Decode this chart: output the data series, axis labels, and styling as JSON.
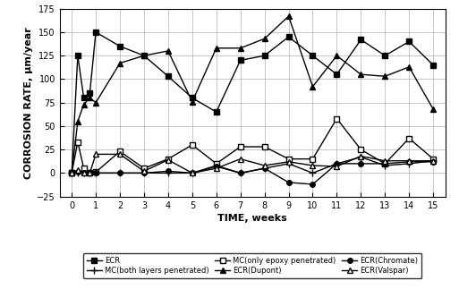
{
  "title": "",
  "xlabel": "TIME, weeks",
  "ylabel": "CORROSION RATE, µm/year",
  "xlim": [
    -0.5,
    15.5
  ],
  "ylim": [
    -25,
    175
  ],
  "yticks": [
    -25,
    0,
    25,
    50,
    75,
    100,
    125,
    150,
    175
  ],
  "xticks": [
    0,
    1,
    2,
    3,
    4,
    5,
    6,
    7,
    8,
    9,
    10,
    11,
    12,
    13,
    14,
    15
  ],
  "series": [
    {
      "label": "ECR",
      "marker": "s",
      "marker_filled": true,
      "linewidth": 1.0,
      "markersize": 4,
      "x": [
        0,
        0.25,
        0.5,
        0.75,
        1,
        2,
        3,
        4,
        5,
        6,
        7,
        8,
        9,
        10,
        11,
        12,
        13,
        14,
        15
      ],
      "y": [
        0,
        125,
        80,
        85,
        150,
        135,
        125,
        103,
        80,
        65,
        120,
        125,
        145,
        125,
        105,
        142,
        125,
        140,
        115
      ]
    },
    {
      "label": "MC(both layers penetrated)",
      "marker": "+",
      "marker_filled": true,
      "linewidth": 1.0,
      "markersize": 6,
      "x": [
        0,
        0.25,
        0.5,
        0.75,
        1,
        2,
        3,
        4,
        5,
        6,
        7,
        8,
        9,
        10,
        11,
        12,
        13,
        14,
        15
      ],
      "y": [
        0,
        0,
        0,
        0,
        0,
        0,
        0,
        0,
        0,
        8,
        0,
        5,
        10,
        0,
        10,
        17,
        8,
        10,
        13
      ]
    },
    {
      "label": "MC(only epoxy penetrated)",
      "marker": "s",
      "marker_filled": false,
      "linewidth": 1.0,
      "markersize": 4,
      "x": [
        0,
        0.25,
        0.5,
        0.75,
        1,
        2,
        3,
        4,
        5,
        6,
        7,
        8,
        9,
        10,
        11,
        12,
        13,
        14,
        15
      ],
      "y": [
        0,
        33,
        5,
        0,
        1,
        23,
        5,
        15,
        30,
        10,
        28,
        28,
        15,
        15,
        58,
        25,
        10,
        37,
        15
      ]
    },
    {
      "label": "ECR(Dupont)",
      "marker": "^",
      "marker_filled": true,
      "linewidth": 1.0,
      "markersize": 5,
      "x": [
        0,
        0.25,
        0.5,
        0.75,
        1,
        2,
        3,
        4,
        5,
        6,
        7,
        8,
        9,
        10,
        11,
        12,
        13,
        14,
        15
      ],
      "y": [
        0,
        55,
        73,
        80,
        75,
        117,
        125,
        130,
        76,
        133,
        133,
        143,
        167,
        92,
        125,
        105,
        103,
        113,
        68
      ]
    },
    {
      "label": "ECR(Chromate)",
      "marker": "o",
      "marker_filled": true,
      "linewidth": 1.0,
      "markersize": 4,
      "x": [
        0,
        0.25,
        0.5,
        0.75,
        1,
        2,
        3,
        4,
        5,
        6,
        7,
        8,
        9,
        10,
        11,
        12,
        13,
        14,
        15
      ],
      "y": [
        0,
        1,
        0,
        0,
        0,
        0,
        0,
        2,
        0,
        7,
        0,
        5,
        -10,
        -12,
        10,
        10,
        10,
        12,
        12
      ]
    },
    {
      "label": "ECR(Valspar)",
      "marker": "^",
      "marker_filled": false,
      "linewidth": 1.0,
      "markersize": 5,
      "x": [
        0,
        0.25,
        0.5,
        0.75,
        1,
        2,
        3,
        4,
        5,
        6,
        7,
        8,
        9,
        10,
        11,
        12,
        13,
        14,
        15
      ],
      "y": [
        0,
        3,
        0,
        0,
        20,
        20,
        2,
        14,
        0,
        5,
        15,
        8,
        12,
        8,
        7,
        18,
        13,
        13,
        13
      ]
    }
  ],
  "legend_order": [
    0,
    1,
    2,
    3,
    4,
    5
  ],
  "background_color": "#ffffff",
  "grid_color": "#b0b0b0",
  "legend_fontsize": 6.0,
  "axis_fontsize": 8,
  "tick_fontsize": 7
}
